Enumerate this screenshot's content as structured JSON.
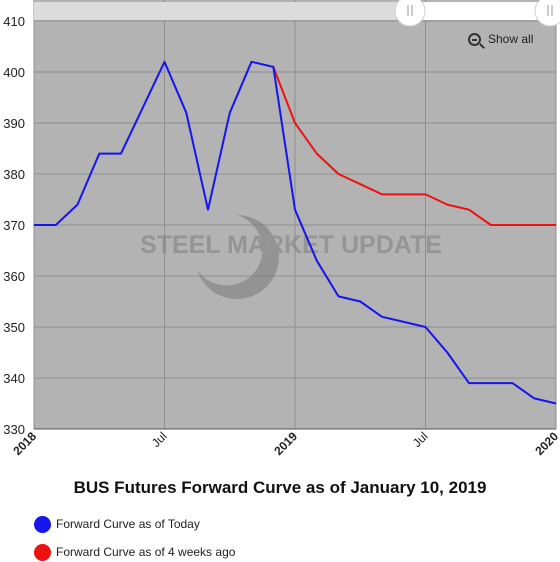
{
  "chart_data": {
    "type": "line",
    "title": "BUS Futures Forward Curve as of January 10, 2019",
    "ylim": [
      330,
      410
    ],
    "yticks": [
      330,
      340,
      350,
      360,
      370,
      380,
      390,
      400,
      410
    ],
    "xlim": [
      "2018-01",
      "2020-01"
    ],
    "xticks": [
      {
        "label": "2018",
        "x": "2018-01",
        "bold": true
      },
      {
        "label": "Jul",
        "x": "2018-07",
        "bold": false
      },
      {
        "label": "2019",
        "x": "2019-01",
        "bold": true
      },
      {
        "label": "Jul",
        "x": "2019-07",
        "bold": false
      },
      {
        "label": "2020",
        "x": "2020-01",
        "bold": true
      }
    ],
    "grid": true,
    "legend_position": "bottom-left",
    "watermark": "STEEL MARKET UPDATE",
    "series": [
      {
        "name": "Forward Curve as of Today",
        "color": "#1515ee",
        "points": [
          [
            "2018-01",
            370
          ],
          [
            "2018-02",
            370
          ],
          [
            "2018-03",
            374
          ],
          [
            "2018-04",
            384
          ],
          [
            "2018-05",
            384
          ],
          [
            "2018-06",
            393
          ],
          [
            "2018-07",
            402
          ],
          [
            "2018-08",
            392
          ],
          [
            "2018-09",
            373
          ],
          [
            "2018-10",
            392
          ],
          [
            "2018-11",
            402
          ],
          [
            "2018-12",
            401
          ],
          [
            "2019-01",
            373
          ],
          [
            "2019-02",
            363
          ],
          [
            "2019-03",
            356
          ],
          [
            "2019-04",
            355
          ],
          [
            "2019-05",
            352
          ],
          [
            "2019-06",
            351
          ],
          [
            "2019-07",
            350
          ],
          [
            "2019-08",
            345
          ],
          [
            "2019-09",
            339
          ],
          [
            "2019-10",
            339
          ],
          [
            "2019-11",
            339
          ],
          [
            "2019-12",
            336
          ],
          [
            "2020-01",
            335
          ]
        ]
      },
      {
        "name": "Forward Curve as of 4 weeks ago",
        "color": "#ee1111",
        "points": [
          [
            "2018-12",
            401
          ],
          [
            "2019-01",
            390
          ],
          [
            "2019-02",
            384
          ],
          [
            "2019-03",
            380
          ],
          [
            "2019-04",
            378
          ],
          [
            "2019-05",
            376
          ],
          [
            "2019-06",
            376
          ],
          [
            "2019-07",
            376
          ],
          [
            "2019-08",
            374
          ],
          [
            "2019-09",
            373
          ],
          [
            "2019-10",
            370
          ],
          [
            "2019-11",
            370
          ],
          [
            "2019-12",
            370
          ],
          [
            "2020-01",
            370
          ]
        ]
      }
    ]
  },
  "controls": {
    "show_all_label": "Show all",
    "zoom_icon": "zoom-out-icon",
    "scrollbar_handle_icon": "grip-lines-icon"
  },
  "colors": {
    "plot_background": "#b3b3b3",
    "grid": "#8f8f8f"
  }
}
